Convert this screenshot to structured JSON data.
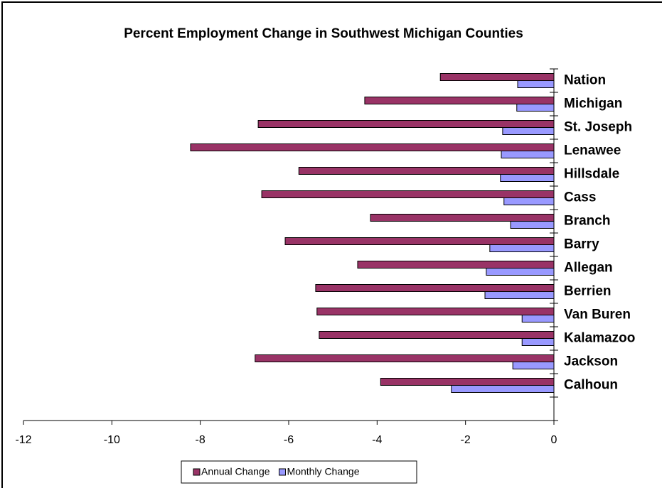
{
  "chart_data": {
    "type": "bar",
    "orientation": "horizontal",
    "title": "Percent Employment Change in Southwest Michigan Counties",
    "categories": [
      "Nation",
      "Michigan",
      "St. Joseph",
      "Lenawee",
      "Hillsdale",
      "Cass",
      "Branch",
      "Barry",
      "Allegan",
      "Berrien",
      "Van Buren",
      "Kalamazoo",
      "Jackson",
      "Calhoun"
    ],
    "series": [
      {
        "name": "Annual Change",
        "color": "#993366",
        "values": [
          -2.57,
          -4.28,
          -6.69,
          -8.22,
          -5.77,
          -6.61,
          -4.15,
          -6.08,
          -4.44,
          -5.39,
          -5.36,
          -5.31,
          -6.76,
          -3.92
        ]
      },
      {
        "name": "Monthly Change",
        "color": "#9999ff",
        "values": [
          -0.82,
          -0.84,
          -1.16,
          -1.19,
          -1.21,
          -1.13,
          -0.98,
          -1.45,
          -1.53,
          -1.56,
          -0.72,
          -0.72,
          -0.93,
          -2.32
        ]
      }
    ],
    "xlim": [
      -12,
      0
    ],
    "xticks": [
      -12,
      -10,
      -8,
      -6,
      -4,
      -2,
      0
    ],
    "legend": "bottom"
  }
}
